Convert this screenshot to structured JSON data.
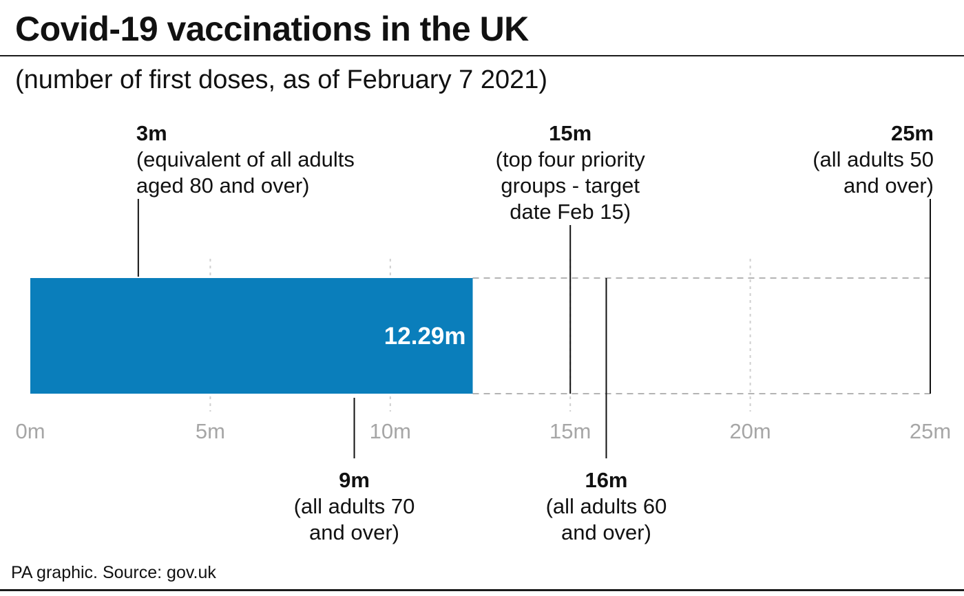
{
  "header": {
    "title": "Covid-19 vaccinations in the UK",
    "subtitle": "(number of first doses, as of February 7 2021)"
  },
  "footer": {
    "source": "PA graphic. Source: gov.uk"
  },
  "colors": {
    "bar": "#0a7ebb",
    "bar_label": "#ffffff",
    "text": "#111111",
    "tick_label": "#a6a6a6",
    "gridline": "#cfcfcf",
    "outline": "#b3b3b3"
  },
  "chart_data": {
    "type": "bar",
    "orientation": "horizontal",
    "title": "Covid-19 vaccinations in the UK",
    "subtitle": "(number of first doses, as of February 7 2021)",
    "xlim": [
      0,
      25
    ],
    "xticks": [
      0,
      5,
      10,
      15,
      20,
      25
    ],
    "xtick_labels": [
      "0m",
      "5m",
      "10m",
      "15m",
      "20m",
      "25m"
    ],
    "grid": true,
    "bar": {
      "value": 12.29,
      "label": "12.29m"
    },
    "annotations": [
      {
        "value": 3,
        "label": "3m",
        "lines": [
          "(equivalent of all adults",
          "aged 80 and over)"
        ],
        "position": "above",
        "align": "left"
      },
      {
        "value": 15,
        "label": "15m",
        "lines": [
          "(top four priority",
          "groups - target",
          "date Feb 15)"
        ],
        "position": "above",
        "align": "center"
      },
      {
        "value": 25,
        "label": "25m",
        "lines": [
          "(all adults 50",
          "and over)"
        ],
        "position": "above",
        "align": "right"
      },
      {
        "value": 9,
        "label": "9m",
        "lines": [
          "(all adults 70",
          "and over)"
        ],
        "position": "below",
        "align": "center"
      },
      {
        "value": 16,
        "label": "16m",
        "lines": [
          "(all adults 60",
          "and over)"
        ],
        "position": "below",
        "align": "center"
      }
    ]
  }
}
